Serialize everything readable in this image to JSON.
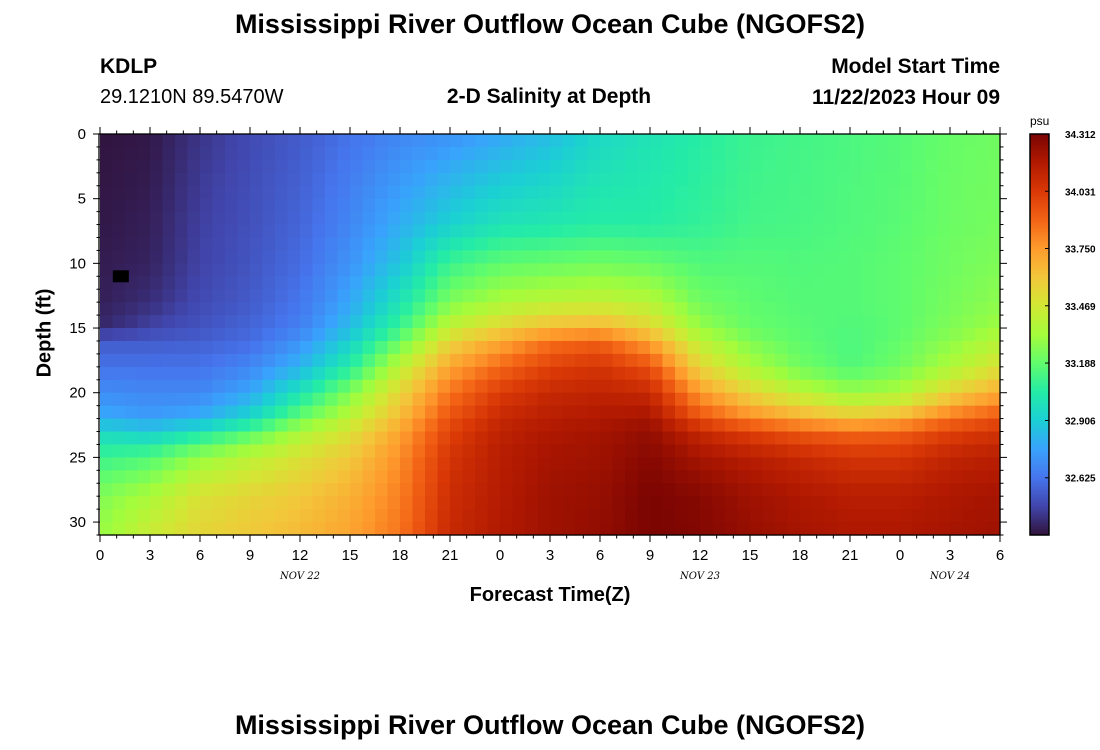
{
  "header": {
    "title": "Mississippi River Outflow Ocean Cube (NGOFS2)",
    "station": "KDLP",
    "coords": "29.1210N  89.5470W",
    "subtitle": "2-D Salinity at Depth",
    "model_start_label": "Model Start Time",
    "model_start_value": "11/22/2023 Hour 09",
    "bottom_title": "Mississippi River Outflow Ocean Cube (NGOFS2)"
  },
  "chart_data": {
    "type": "heatmap",
    "xlabel": "Forecast Time(Z)",
    "ylabel": "Depth (ft)",
    "x_range_hours": [
      0,
      54
    ],
    "x_tick_labels": [
      "0",
      "3",
      "6",
      "9",
      "12",
      "15",
      "18",
      "21",
      "0",
      "3",
      "6",
      "9",
      "12",
      "15",
      "18",
      "21",
      "0",
      "3",
      "6"
    ],
    "day_labels": [
      {
        "label": "NOV 22",
        "hour": 12
      },
      {
        "label": "NOV 23",
        "hour": 36
      },
      {
        "label": "NOV 24",
        "hour": 51
      }
    ],
    "ylim": [
      0,
      31
    ],
    "y_ticks": [
      0,
      5,
      10,
      15,
      20,
      25,
      30
    ],
    "y_inverted": true,
    "colorbar": {
      "unit": "psu",
      "min": 32.344,
      "max": 34.312,
      "tick_values": [
        34.312,
        34.031,
        33.75,
        33.469,
        33.188,
        32.906,
        32.625
      ],
      "tick_labels": [
        "34.312",
        "34.031",
        "33.750",
        "33.469",
        "33.188",
        "32.906",
        "32.625"
      ]
    },
    "salinity_layer_depths_ft": [
      0,
      7,
      10,
      13,
      15,
      16,
      18,
      20,
      22,
      23,
      25,
      28,
      31
    ],
    "salinity_profiles": [
      {
        "hour": 0,
        "values": [
          32.35,
          32.36,
          32.37,
          32.38,
          32.4,
          32.55,
          32.62,
          32.7,
          32.8,
          32.95,
          33.1,
          33.25,
          33.3
        ]
      },
      {
        "hour": 3,
        "values": [
          32.36,
          32.38,
          32.39,
          32.42,
          32.48,
          32.55,
          32.62,
          32.68,
          32.75,
          32.9,
          33.15,
          33.35,
          33.45
        ]
      },
      {
        "hour": 6,
        "values": [
          32.44,
          32.47,
          32.48,
          32.5,
          32.53,
          32.56,
          32.62,
          32.68,
          32.8,
          33.0,
          33.3,
          33.5,
          33.55
        ]
      },
      {
        "hour": 9,
        "values": [
          32.5,
          32.52,
          32.53,
          32.55,
          32.58,
          32.6,
          32.68,
          32.78,
          32.95,
          33.15,
          33.4,
          33.55,
          33.6
        ]
      },
      {
        "hour": 12,
        "values": [
          32.55,
          32.58,
          32.6,
          32.63,
          32.66,
          32.72,
          32.82,
          33.0,
          33.2,
          33.35,
          33.5,
          33.6,
          33.65
        ]
      },
      {
        "hour": 15,
        "values": [
          32.62,
          32.68,
          32.72,
          32.78,
          32.85,
          32.92,
          33.05,
          33.25,
          33.4,
          33.5,
          33.6,
          33.68,
          33.72
        ]
      },
      {
        "hour": 18,
        "values": [
          32.68,
          32.8,
          32.88,
          33.0,
          33.1,
          33.2,
          33.4,
          33.55,
          33.65,
          33.72,
          33.78,
          33.82,
          33.85
        ]
      },
      {
        "hour": 21,
        "values": [
          32.72,
          32.92,
          33.1,
          33.25,
          33.42,
          33.55,
          33.72,
          33.85,
          33.95,
          34.0,
          34.05,
          34.08,
          34.1
        ]
      },
      {
        "hour": 24,
        "values": [
          32.78,
          33.0,
          33.18,
          33.35,
          33.55,
          33.7,
          33.88,
          34.02,
          34.1,
          34.13,
          34.15,
          34.16,
          34.17
        ]
      },
      {
        "hour": 27,
        "values": [
          32.85,
          33.02,
          33.2,
          33.4,
          33.65,
          33.85,
          34.0,
          34.1,
          34.15,
          34.18,
          34.2,
          34.22,
          34.22
        ]
      },
      {
        "hour": 30,
        "values": [
          32.95,
          33.05,
          33.22,
          33.42,
          33.68,
          33.9,
          34.05,
          34.12,
          34.18,
          34.2,
          34.22,
          34.24,
          34.25
        ]
      },
      {
        "hour": 33,
        "values": [
          33.0,
          33.05,
          33.2,
          33.38,
          33.55,
          33.72,
          33.95,
          34.1,
          34.2,
          34.25,
          34.28,
          34.31,
          34.31
        ]
      },
      {
        "hour": 36,
        "values": [
          33.05,
          33.08,
          33.15,
          33.22,
          33.3,
          33.4,
          33.55,
          33.75,
          33.95,
          34.1,
          34.2,
          34.28,
          34.29
        ]
      },
      {
        "hour": 39,
        "values": [
          33.1,
          33.12,
          33.16,
          33.18,
          33.2,
          33.25,
          33.35,
          33.55,
          33.8,
          34.0,
          34.15,
          34.22,
          34.24
        ]
      },
      {
        "hour": 42,
        "values": [
          33.12,
          33.13,
          33.15,
          33.16,
          33.17,
          33.18,
          33.22,
          33.4,
          33.7,
          33.92,
          34.1,
          34.18,
          34.2
        ]
      },
      {
        "hour": 45,
        "values": [
          33.14,
          33.15,
          33.16,
          33.16,
          33.15,
          33.14,
          33.15,
          33.3,
          33.62,
          33.88,
          34.05,
          34.15,
          34.18
        ]
      },
      {
        "hour": 48,
        "values": [
          33.16,
          33.17,
          33.18,
          33.18,
          33.18,
          33.19,
          33.22,
          33.35,
          33.68,
          33.9,
          34.05,
          34.15,
          34.18
        ]
      },
      {
        "hour": 51,
        "values": [
          33.2,
          33.21,
          33.22,
          33.23,
          33.25,
          33.28,
          33.35,
          33.55,
          33.85,
          34.0,
          34.12,
          34.18,
          34.2
        ]
      },
      {
        "hour": 54,
        "values": [
          33.22,
          33.23,
          33.25,
          33.28,
          33.32,
          33.38,
          33.5,
          33.7,
          33.95,
          34.05,
          34.15,
          34.2,
          34.22
        ]
      }
    ],
    "missing_marker": {
      "hour": 1.25,
      "depth_ft": 11
    }
  },
  "colors": {
    "ramp": [
      "#30123b",
      "#4145ab",
      "#4675ed",
      "#39a2fc",
      "#1bcfd4",
      "#24eca6",
      "#61fc6c",
      "#a4fc3b",
      "#d1e834",
      "#f3c63a",
      "#fe9b2d",
      "#f36315",
      "#d93806",
      "#b11901",
      "#7a0402"
    ],
    "missing": "#000000"
  }
}
